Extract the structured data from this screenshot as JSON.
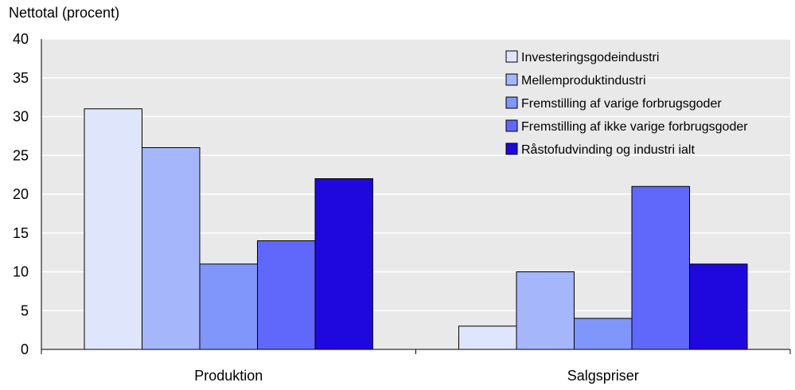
{
  "chart_data": {
    "type": "bar",
    "ylabel": "Nettotal (procent)",
    "categories": [
      "Produktion",
      "Salgspriser"
    ],
    "series": [
      {
        "name": "Investeringsgodeindustri",
        "values": [
          31,
          3
        ],
        "color": "#dfe6fb"
      },
      {
        "name": "Mellemproduktindustri",
        "values": [
          26,
          10
        ],
        "color": "#a5b6fb"
      },
      {
        "name": "Fremstilling af varige forbrugsgoder",
        "values": [
          11,
          4
        ],
        "color": "#8196fb"
      },
      {
        "name": "Fremstilling af ikke varige forbrugsgoder",
        "values": [
          14,
          21
        ],
        "color": "#5f68fb"
      },
      {
        "name": "Råstofudvinding og industri ialt",
        "values": [
          22,
          11
        ],
        "color": "#1e08dd"
      }
    ],
    "ylim": [
      0,
      40
    ],
    "yticks": [
      0,
      5,
      10,
      15,
      20,
      25,
      30,
      35,
      40
    ],
    "grid": true,
    "plot_background": "#e9e9ea",
    "legend_position": "top-right"
  }
}
